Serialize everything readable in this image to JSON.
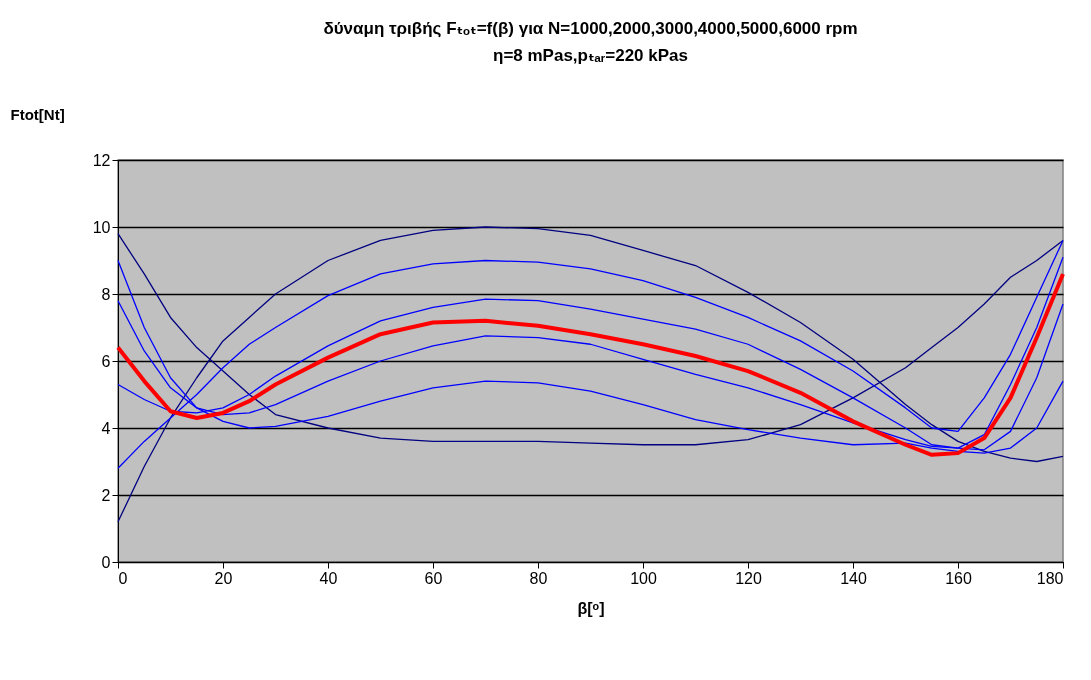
{
  "chart_data": {
    "type": "line",
    "title": "δύναμη τριβής Fₜₒₜ=f(β) για N=1000,2000,3000,4000,5000,6000 rpm",
    "subtitle": "η=8 mPas,pₜₐᵣ=220 kPas",
    "xlabel": "β[ᵒ]",
    "ylabel": "Ftot[Nt]",
    "x": [
      0,
      5,
      10,
      15,
      20,
      25,
      30,
      40,
      50,
      60,
      70,
      80,
      90,
      100,
      110,
      120,
      130,
      140,
      150,
      155,
      160,
      165,
      170,
      175,
      180
    ],
    "series": [
      {
        "color": "#000080",
        "values": [
          9.8,
          8.6,
          7.3,
          6.4,
          5.7,
          5.0,
          4.4,
          4.0,
          3.7,
          3.6,
          3.6,
          3.6,
          3.55,
          3.5,
          3.5,
          3.65,
          4.1,
          4.9,
          5.8,
          6.4,
          7.0,
          7.7,
          8.5,
          9.0,
          9.6
        ]
      },
      {
        "color": "#000080",
        "values": [
          1.2,
          2.85,
          4.3,
          5.5,
          6.6,
          7.3,
          8.0,
          9.0,
          9.6,
          9.9,
          10.0,
          9.95,
          9.75,
          9.3,
          8.85,
          8.05,
          7.15,
          6.05,
          4.7,
          4.1,
          3.6,
          3.3,
          3.1,
          3.0,
          3.15
        ]
      },
      {
        "color": "#0000ff",
        "values": [
          2.8,
          3.6,
          4.3,
          5.0,
          5.8,
          6.5,
          7.0,
          7.95,
          8.6,
          8.9,
          9.0,
          8.95,
          8.75,
          8.4,
          7.9,
          7.3,
          6.6,
          5.7,
          4.6,
          4.0,
          3.9,
          4.9,
          6.2,
          7.9,
          9.6
        ]
      },
      {
        "color": "#0000ff",
        "values": [
          5.3,
          4.85,
          4.5,
          4.45,
          4.6,
          5.0,
          5.55,
          6.45,
          7.2,
          7.6,
          7.85,
          7.8,
          7.55,
          7.25,
          6.95,
          6.5,
          5.75,
          4.9,
          4.0,
          3.5,
          3.4,
          3.8,
          5.3,
          7.0,
          9.1
        ]
      },
      {
        "color": "#0000ff",
        "values": [
          7.8,
          6.3,
          5.2,
          4.6,
          4.4,
          4.45,
          4.7,
          5.4,
          6.0,
          6.45,
          6.75,
          6.7,
          6.5,
          6.05,
          5.6,
          5.2,
          4.7,
          4.15,
          3.65,
          3.45,
          3.4,
          3.35,
          3.9,
          5.5,
          7.7
        ]
      },
      {
        "color": "#0000ff",
        "values": [
          9.0,
          7.0,
          5.5,
          4.6,
          4.2,
          4.0,
          4.05,
          4.35,
          4.8,
          5.2,
          5.4,
          5.35,
          5.1,
          4.7,
          4.25,
          3.95,
          3.7,
          3.5,
          3.55,
          3.4,
          3.3,
          3.25,
          3.4,
          4.0,
          5.4
        ]
      },
      {
        "color": "#ff0000",
        "values": [
          6.4,
          5.4,
          4.5,
          4.3,
          4.45,
          4.8,
          5.3,
          6.1,
          6.8,
          7.15,
          7.2,
          7.05,
          6.8,
          6.5,
          6.15,
          5.7,
          5.05,
          4.2,
          3.5,
          3.2,
          3.25,
          3.7,
          4.9,
          6.7,
          8.6
        ]
      }
    ],
    "xlim": [
      0,
      180
    ],
    "xticks": [
      0,
      20,
      40,
      60,
      80,
      100,
      120,
      140,
      160,
      180
    ],
    "ylim": [
      0,
      12
    ],
    "yticks": [
      0,
      2,
      4,
      6,
      8,
      10,
      12
    ],
    "grid": "y",
    "marker": "none",
    "line_style": "solid"
  }
}
